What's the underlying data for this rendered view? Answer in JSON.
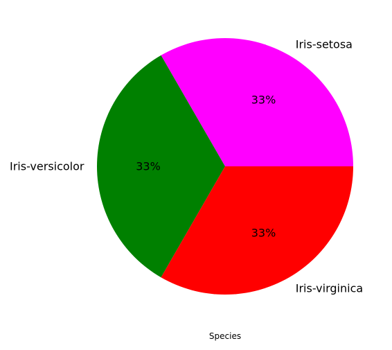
{
  "chart_data": {
    "type": "pie",
    "title": "",
    "xlabel": "Species",
    "start_angle_deg": 0,
    "direction": "counterclockwise",
    "grid": false,
    "legend": "none",
    "slices": [
      {
        "label": "Iris-setosa",
        "value": 50,
        "percent_label": "33%",
        "color": "#ff00ff"
      },
      {
        "label": "Iris-versicolor",
        "value": 50,
        "percent_label": "33%",
        "color": "#008000"
      },
      {
        "label": "Iris-virginica",
        "value": 50,
        "percent_label": "33%",
        "color": "#ff0000"
      }
    ]
  }
}
